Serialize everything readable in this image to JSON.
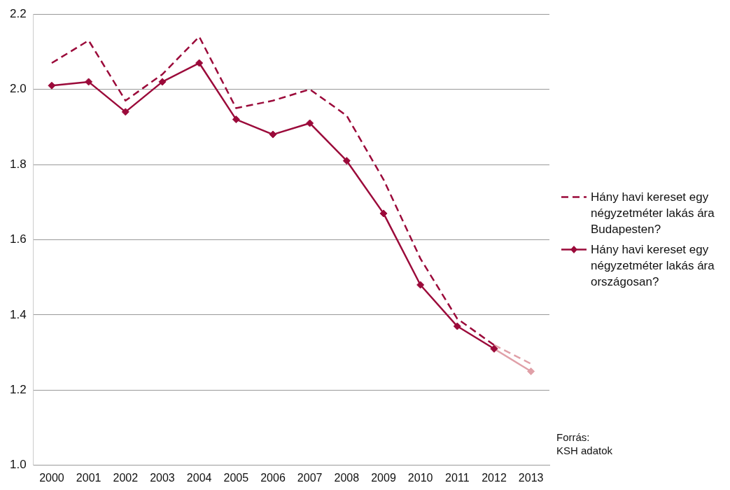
{
  "chart_data": {
    "type": "line",
    "categories": [
      "2000",
      "2001",
      "2002",
      "2003",
      "2004",
      "2005",
      "2006",
      "2007",
      "2008",
      "2009",
      "2010",
      "2011",
      "2012",
      "2013"
    ],
    "series": [
      {
        "name": "Hány havi kereset egy négyzetméter lakás ára Budapesten?",
        "color": "#9b0a3a",
        "line_style": "dashed",
        "marker": "none",
        "values": [
          2.07,
          2.13,
          1.97,
          2.04,
          2.14,
          1.95,
          1.97,
          2.0,
          1.93,
          1.76,
          1.55,
          1.39,
          1.32,
          null
        ]
      },
      {
        "name": "Hány havi kereset egy négyzetméter lakás ára országosan?",
        "color": "#9b0a3a",
        "line_style": "solid",
        "marker": "diamond",
        "values": [
          2.01,
          2.02,
          1.94,
          2.02,
          2.07,
          1.92,
          1.88,
          1.91,
          1.81,
          1.67,
          1.48,
          1.37,
          1.31,
          null
        ]
      },
      {
        "color": "#e0a0a8",
        "line_style": "dashed",
        "marker": "none",
        "values": [
          null,
          null,
          null,
          null,
          null,
          null,
          null,
          null,
          null,
          null,
          null,
          null,
          1.32,
          1.27
        ]
      },
      {
        "color": "#e0a0a8",
        "line_style": "solid",
        "marker": "diamond",
        "values": [
          null,
          null,
          null,
          null,
          null,
          null,
          null,
          null,
          null,
          null,
          null,
          null,
          1.31,
          1.25
        ]
      }
    ],
    "ylim": [
      1.0,
      2.2
    ],
    "yticks": [
      {
        "value": 1.0,
        "label": "1.0"
      },
      {
        "value": 1.2,
        "label": "1.2"
      },
      {
        "value": 1.4,
        "label": "1.4"
      },
      {
        "value": 1.6,
        "label": "1.6"
      },
      {
        "value": 1.8,
        "label": "1.8"
      },
      {
        "value": 2.0,
        "label": "2.0"
      },
      {
        "value": 2.2,
        "label": "2.2"
      }
    ],
    "grid": "y",
    "legend": "right",
    "annotations": [
      "Forrás:",
      "KSH adatok"
    ]
  }
}
